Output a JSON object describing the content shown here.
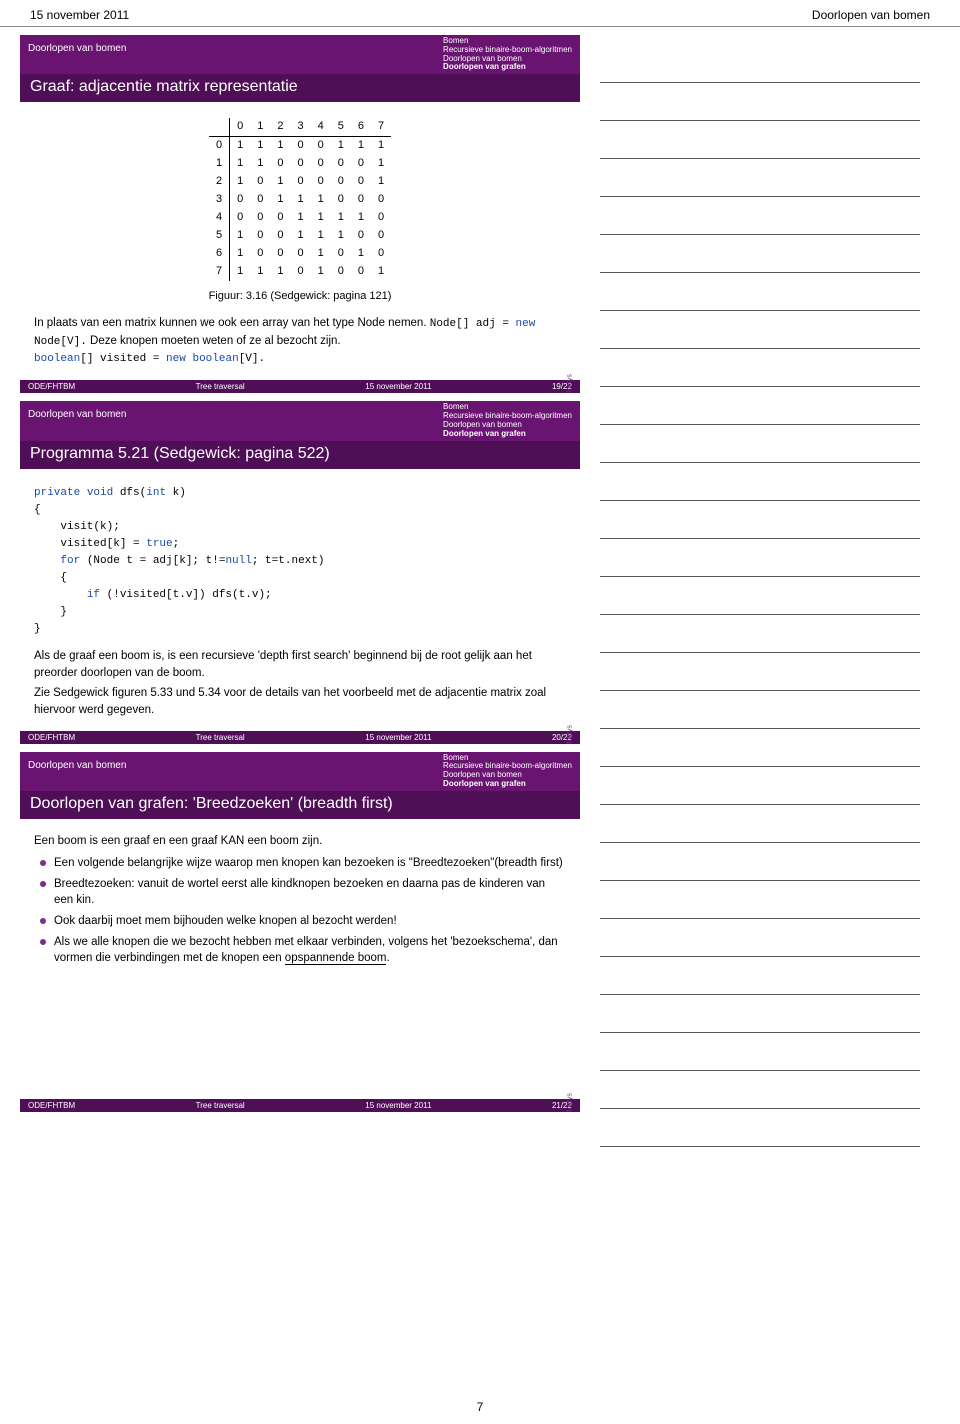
{
  "colors": {
    "brand": "#6a1472",
    "brand_dark": "#4f0f57",
    "bullet": "#7b2d8e",
    "code_kw": "#1a4aa8"
  },
  "page": {
    "header_left": "15 november 2011",
    "header_right": "Doorlopen van bomen",
    "number": "7"
  },
  "slide_header": {
    "left_label": "Doorlopen van bomen",
    "lines": [
      "Bomen",
      "Recursieve binaire-boom-algoritmen",
      "Doorlopen van bomen",
      "Doorlopen van grafen"
    ],
    "bold_index": 3
  },
  "slide1": {
    "title": "Graaf: adjacentie matrix representatie",
    "matrix": {
      "columns": [
        "0",
        "1",
        "2",
        "3",
        "4",
        "5",
        "6",
        "7"
      ],
      "rows": [
        {
          "hdr": "0",
          "cells": [
            "1",
            "1",
            "1",
            "0",
            "0",
            "1",
            "1",
            "1"
          ]
        },
        {
          "hdr": "1",
          "cells": [
            "1",
            "1",
            "0",
            "0",
            "0",
            "0",
            "0",
            "1"
          ]
        },
        {
          "hdr": "2",
          "cells": [
            "1",
            "0",
            "1",
            "0",
            "0",
            "0",
            "0",
            "1"
          ]
        },
        {
          "hdr": "3",
          "cells": [
            "0",
            "0",
            "1",
            "1",
            "1",
            "0",
            "0",
            "0"
          ]
        },
        {
          "hdr": "4",
          "cells": [
            "0",
            "0",
            "0",
            "1",
            "1",
            "1",
            "1",
            "0"
          ]
        },
        {
          "hdr": "5",
          "cells": [
            "1",
            "0",
            "0",
            "1",
            "1",
            "1",
            "0",
            "0"
          ]
        },
        {
          "hdr": "6",
          "cells": [
            "1",
            "0",
            "0",
            "0",
            "1",
            "0",
            "1",
            "0"
          ]
        },
        {
          "hdr": "7",
          "cells": [
            "1",
            "1",
            "1",
            "0",
            "1",
            "0",
            "0",
            "1"
          ]
        }
      ]
    },
    "caption": "Figuur: 3.16 (Sedgewick: pagina 121)",
    "para1": "In plaats van een matrix kunnen we ook een array van het type Node nemen. ",
    "code1a": "Node[] adj = ",
    "code1b": "new",
    "code1c": " Node[V].",
    "para1b": "   Deze knopen moeten weten of ze al bezocht zijn.",
    "code2a": "boolean",
    "code2b": "[] visited = ",
    "code2c": "new",
    "code2d": " ",
    "code2e": "boolean",
    "code2f": "[V].",
    "footer": {
      "left": "ODE/FHTBM",
      "mid": "Tree traversal",
      "right": "15 november 2011",
      "page": "19/22"
    }
  },
  "slide2": {
    "title": "Programma 5.21 (Sedgewick: pagina 522)",
    "code": "private void dfs(int k)\n{\n    visit(k);\n    visited[k] = true;\n    for (Node t = adj[k]; t!=null; t=t.next)\n    {\n        if (!visited[t.v]) dfs(t.v);\n    }\n}",
    "para1": "Als de graaf een boom is, is een recursieve 'depth first search' beginnend bij de root gelijk aan het preorder doorlopen van de boom.",
    "para2": "Zie Sedgewick figuren 5.33 und 5.34 voor de details van het voorbeeld met de adjacentie matrix zoal hiervoor werd gegeven.",
    "footer": {
      "left": "ODE/FHTBM",
      "mid": "Tree traversal",
      "right": "15 november 2011",
      "page": "20/22"
    }
  },
  "slide3": {
    "title": "Doorlopen van grafen: 'Breedzoeken' (breadth first)",
    "intro": "Een boom is een graaf en een graaf KAN een boom zijn.",
    "bullets": [
      "Een volgende belangrijke wijze waarop men knopen kan bezoeken is \"Breedtezoeken\"(breadth first)",
      "Breedtezoeken: vanuit de wortel eerst alle kindknopen bezoeken en daarna pas de kinderen van een kin.",
      "Ook daarbij moet mem bijhouden welke knopen al bezocht werden!"
    ],
    "bullet4_a": "Als we alle knopen die we bezocht hebben met elkaar verbinden, volgens het 'bezoekschema', dan vormen die verbindingen met de knopen een ",
    "bullet4_b": "opspannende boom",
    "bullet4_c": ".",
    "footer": {
      "left": "ODE/FHTBM",
      "mid": "Tree traversal",
      "right": "15 november 2011",
      "page": "21/22"
    }
  },
  "notes": {
    "line_count": 29
  },
  "fontys": "fontys"
}
